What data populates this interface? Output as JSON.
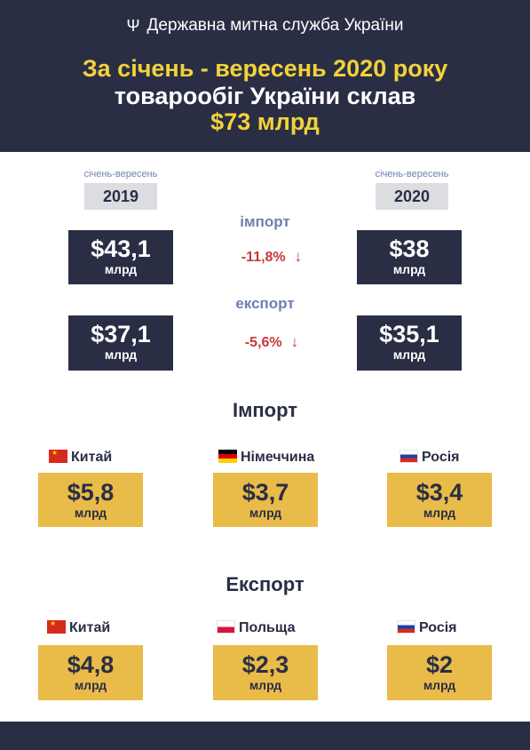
{
  "header": {
    "agency": "Державна митна служба України",
    "title_line1": "За січень - вересень 2020 року",
    "title_line2": "товарообіг України склав",
    "title_line3": "$73 млрд"
  },
  "comparison": {
    "period_label_left": "січень-вересень",
    "period_label_right": "січень-вересень",
    "year_left": "2019",
    "year_right": "2020",
    "import": {
      "label": "імпорт",
      "value_2019": "$43,1",
      "unit_2019": "млрд",
      "value_2020": "$38",
      "unit_2020": "млрд",
      "change": "-11,8%"
    },
    "export": {
      "label": "експорт",
      "value_2019": "$37,1",
      "unit_2019": "млрд",
      "value_2020": "$35,1",
      "unit_2020": "млрд",
      "change": "-5,6%"
    },
    "arrow": "↓"
  },
  "import_partners": {
    "title": "Імпорт",
    "items": [
      {
        "country": "Китай",
        "value": "$5,8",
        "unit": "млрд",
        "flag": "china-flag-icon"
      },
      {
        "country": "Німеччина",
        "value": "$3,7",
        "unit": "млрд",
        "flag": "germany-flag-icon"
      },
      {
        "country": "Росія",
        "value": "$3,4",
        "unit": "млрд",
        "flag": "russia-flag-icon"
      }
    ]
  },
  "export_partners": {
    "title": "Експорт",
    "items": [
      {
        "country": "Китай",
        "value": "$4,8",
        "unit": "млрд",
        "flag": "china-flag-icon"
      },
      {
        "country": "Польща",
        "value": "$2,3",
        "unit": "млрд",
        "flag": "poland-flag-icon"
      },
      {
        "country": "Росія",
        "value": "$2",
        "unit": "млрд",
        "flag": "russia-flag-icon"
      }
    ]
  },
  "colors": {
    "navy": "#2a2e45",
    "gold_text": "#f3d23a",
    "gold_box": "#e9bb48",
    "muted_blue": "#6f7fb0",
    "red": "#c7373b",
    "gray_box": "#dcdde1"
  }
}
